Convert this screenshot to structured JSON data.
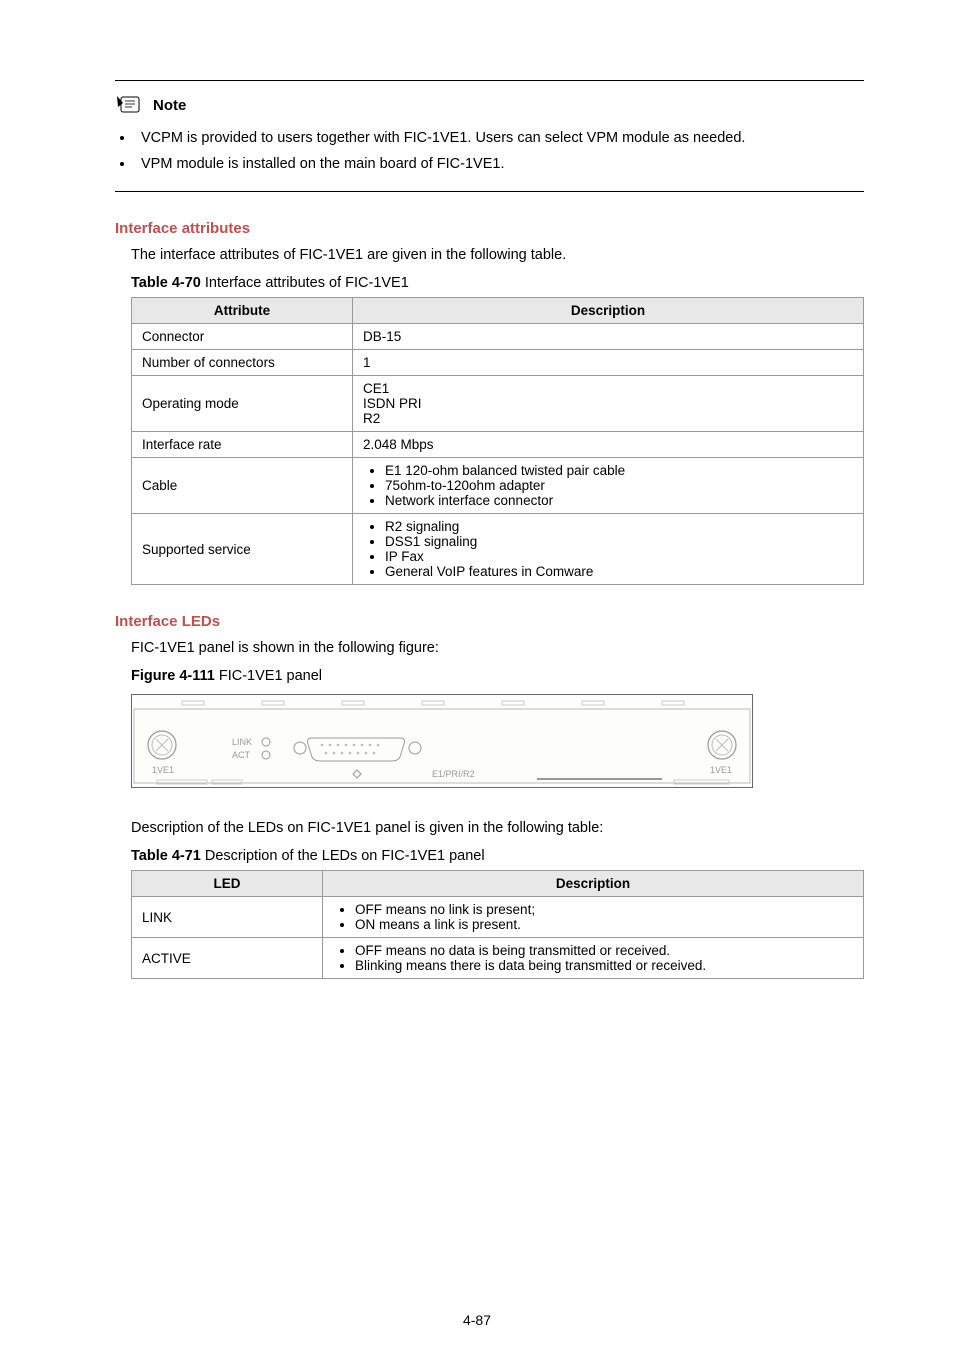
{
  "note": {
    "label": "Note",
    "bullets": [
      "VCPM is provided to users together with FIC-1VE1. Users can select VPM module as needed.",
      "VPM module is installed on the main board of FIC-1VE1."
    ]
  },
  "section1": {
    "heading": "Interface attributes",
    "intro": "The interface attributes of FIC-1VE1 are given in the following table.",
    "tableCaptionBold": "Table 4-70",
    "tableCaptionRest": " Interface attributes of FIC-1VE1",
    "headers": {
      "c1": "Attribute",
      "c2": "Description"
    },
    "rows": [
      {
        "attr": "Connector",
        "desc": "DB-15",
        "type": "text"
      },
      {
        "attr": "Number of connectors",
        "desc": "1",
        "type": "text"
      },
      {
        "attr": "Operating mode",
        "desc": "CE1\nISDN PRI\nR2",
        "type": "multiline"
      },
      {
        "attr": "Interface rate",
        "desc": "2.048 Mbps",
        "type": "text"
      },
      {
        "attr": "Cable",
        "items": [
          "E1 120-ohm balanced twisted pair cable",
          "75ohm-to-120ohm adapter",
          "Network interface connector"
        ],
        "type": "list"
      },
      {
        "attr": "Supported service",
        "items": [
          "R2 signaling",
          "DSS1 signaling",
          "IP Fax",
          "General VoIP features in Comware"
        ],
        "type": "list"
      }
    ]
  },
  "section2": {
    "heading": "Interface LEDs",
    "intro": "FIC-1VE1 panel is shown in the following figure:",
    "figCaptionBold": "Figure 4-111",
    "figCaptionRest": " FIC-1VE1 panel",
    "figLabels": {
      "link": "LINK",
      "act": "ACT",
      "center": "E1/PRI/R2",
      "sideL": "1VE1",
      "sideR": "1VE1"
    },
    "intro2": "Description of the LEDs on FIC-1VE1 panel is given in the following table:",
    "tableCaptionBold": "Table 4-71",
    "tableCaptionRest": " Description of the LEDs on FIC-1VE1 panel",
    "headers": {
      "c1": "LED",
      "c2": "Description"
    },
    "rows": [
      {
        "led": "LINK",
        "items": [
          "OFF means no link is present;",
          "ON means a link is present."
        ]
      },
      {
        "led": "ACTIVE",
        "items": [
          "OFF means no data is being transmitted or received.",
          "Blinking means there is data being transmitted or received."
        ]
      }
    ]
  },
  "pageNum": "4-87",
  "colors": {
    "headingRed": "#c0504d",
    "borderGray": "#999",
    "headerBg": "#e8e8e8"
  }
}
